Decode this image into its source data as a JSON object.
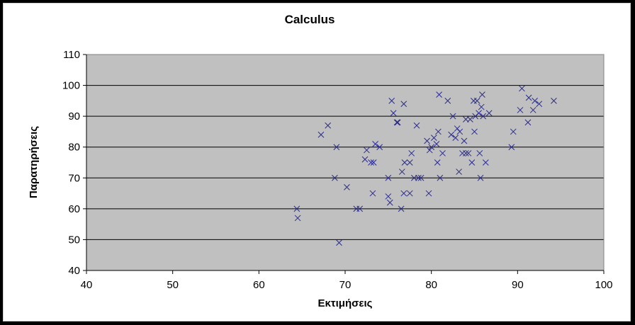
{
  "chart_data": {
    "type": "scatter",
    "title": "Calculus",
    "xlabel": "Εκτιμήσεις",
    "ylabel": "Παρατηρήσεις",
    "xlim": [
      40,
      100
    ],
    "ylim": [
      40,
      110
    ],
    "xticks": [
      "40",
      "50",
      "60",
      "70",
      "80",
      "90",
      "100"
    ],
    "yticks": [
      "40",
      "50",
      "60",
      "70",
      "80",
      "90",
      "100",
      "110"
    ],
    "grid": "horizontal",
    "plot_background": "#c0c0c0",
    "marker_color": "#2a2a8c",
    "marker": "x",
    "points": [
      [
        64.4,
        60
      ],
      [
        64.5,
        57
      ],
      [
        67.2,
        84
      ],
      [
        68.0,
        87
      ],
      [
        68.8,
        70
      ],
      [
        69.0,
        80
      ],
      [
        69.3,
        49
      ],
      [
        70.2,
        67
      ],
      [
        71.3,
        60
      ],
      [
        71.7,
        60
      ],
      [
        72.3,
        76
      ],
      [
        72.5,
        79
      ],
      [
        73.0,
        75
      ],
      [
        73.2,
        65
      ],
      [
        73.3,
        75
      ],
      [
        73.5,
        81
      ],
      [
        74.0,
        80
      ],
      [
        75.0,
        70
      ],
      [
        75.0,
        64
      ],
      [
        75.2,
        62
      ],
      [
        75.4,
        95
      ],
      [
        75.6,
        91
      ],
      [
        76.0,
        88
      ],
      [
        76.1,
        88
      ],
      [
        76.5,
        60
      ],
      [
        76.6,
        72
      ],
      [
        76.8,
        65
      ],
      [
        76.8,
        94
      ],
      [
        76.9,
        75
      ],
      [
        77.5,
        75
      ],
      [
        77.5,
        65
      ],
      [
        77.7,
        78
      ],
      [
        78.0,
        70
      ],
      [
        78.3,
        87
      ],
      [
        78.5,
        70
      ],
      [
        78.8,
        70
      ],
      [
        79.5,
        82
      ],
      [
        79.7,
        65
      ],
      [
        79.8,
        79
      ],
      [
        80.0,
        80
      ],
      [
        80.3,
        83
      ],
      [
        80.6,
        81
      ],
      [
        80.7,
        75
      ],
      [
        80.8,
        85
      ],
      [
        80.9,
        97
      ],
      [
        81.0,
        70
      ],
      [
        81.3,
        78
      ],
      [
        81.9,
        95
      ],
      [
        82.3,
        84
      ],
      [
        82.5,
        90
      ],
      [
        82.8,
        83
      ],
      [
        83.0,
        86
      ],
      [
        83.2,
        72
      ],
      [
        83.3,
        85
      ],
      [
        83.6,
        78
      ],
      [
        83.8,
        82
      ],
      [
        84.0,
        89
      ],
      [
        84.0,
        78
      ],
      [
        84.3,
        78
      ],
      [
        84.5,
        89
      ],
      [
        84.7,
        75
      ],
      [
        84.9,
        95
      ],
      [
        85.0,
        85
      ],
      [
        85.1,
        90
      ],
      [
        85.3,
        95
      ],
      [
        85.5,
        91
      ],
      [
        85.6,
        78
      ],
      [
        85.7,
        70
      ],
      [
        85.8,
        93
      ],
      [
        85.9,
        97
      ],
      [
        86.0,
        90
      ],
      [
        86.3,
        75
      ],
      [
        86.7,
        91
      ],
      [
        89.3,
        80
      ],
      [
        89.5,
        85
      ],
      [
        90.3,
        92
      ],
      [
        90.5,
        99
      ],
      [
        91.2,
        88
      ],
      [
        91.3,
        96
      ],
      [
        91.8,
        92
      ],
      [
        92.0,
        95
      ],
      [
        92.5,
        94
      ],
      [
        94.2,
        95
      ]
    ]
  }
}
